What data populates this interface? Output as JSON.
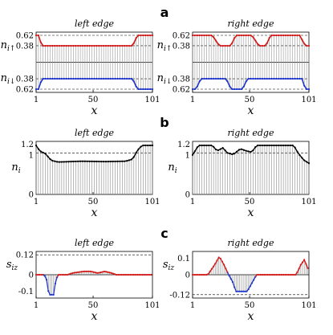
{
  "panel_labels": [
    "a",
    "b",
    "c"
  ],
  "chart_data": [
    {
      "type": "line",
      "panel": "a",
      "title": "left edge",
      "xlabel": "x",
      "ylabel_up": "n_{i↑}",
      "ylabel_dn": "n_{i↓}",
      "xticks": [
        "1",
        "50",
        "101"
      ],
      "yticks_up": [
        "0.62",
        "0.38"
      ],
      "yticks_dn": [
        "0.38",
        "0.62"
      ],
      "xlim": [
        1,
        101
      ],
      "colors": {
        "up": "#d11a1a",
        "down": "#1c33c9"
      },
      "series": [
        {
          "name": "up",
          "segments": [
            [
              1,
              0.62
            ],
            [
              3,
              0.62
            ],
            [
              6,
              0.38
            ],
            [
              84,
              0.38
            ],
            [
              88,
              0.62
            ],
            [
              101,
              0.62
            ]
          ]
        },
        {
          "name": "down",
          "segments": [
            [
              1,
              0.62
            ],
            [
              3,
              0.62
            ],
            [
              6,
              0.38
            ],
            [
              84,
              0.38
            ],
            [
              88,
              0.62
            ],
            [
              101,
              0.62
            ]
          ]
        }
      ]
    },
    {
      "type": "line",
      "panel": "a",
      "title": "right edge",
      "xlabel": "x",
      "ylabel_up": "n_{i↑}",
      "ylabel_dn": "n_{i↓}",
      "xticks": [
        "1",
        "50",
        "101"
      ],
      "yticks_up": [
        "0.62",
        "0.38"
      ],
      "yticks_dn": [
        "0.38",
        "0.62"
      ],
      "xlim": [
        1,
        101
      ],
      "colors": {
        "up": "#d11a1a",
        "down": "#1c33c9"
      },
      "series": [
        {
          "name": "up",
          "segments": [
            [
              1,
              0.62
            ],
            [
              18,
              0.62
            ],
            [
              24,
              0.38
            ],
            [
              34,
              0.38
            ],
            [
              38,
              0.62
            ],
            [
              52,
              0.62
            ],
            [
              58,
              0.38
            ],
            [
              64,
              0.38
            ],
            [
              68,
              0.62
            ],
            [
              93,
              0.62
            ],
            [
              98,
              0.38
            ],
            [
              101,
              0.38
            ]
          ]
        },
        {
          "name": "down",
          "segments": [
            [
              1,
              0.62
            ],
            [
              4,
              0.62
            ],
            [
              8,
              0.38
            ],
            [
              30,
              0.38
            ],
            [
              34,
              0.62
            ],
            [
              44,
              0.62
            ],
            [
              48,
              0.38
            ],
            [
              95,
              0.38
            ],
            [
              98,
              0.62
            ],
            [
              101,
              0.62
            ]
          ]
        }
      ]
    },
    {
      "type": "line",
      "panel": "b",
      "title": "left edge",
      "xlabel": "x",
      "ylabel": "n_i",
      "xticks": [
        "1",
        "50",
        "101"
      ],
      "yticks": [
        "1.2",
        "1",
        "0"
      ],
      "ylim": [
        0,
        1.2
      ],
      "reference_line": 1,
      "points": [
        [
          1,
          1.18
        ],
        [
          4,
          1.05
        ],
        [
          9,
          0.98
        ],
        [
          14,
          0.82
        ],
        [
          20,
          0.78
        ],
        [
          40,
          0.8
        ],
        [
          60,
          0.79
        ],
        [
          78,
          0.8
        ],
        [
          84,
          0.85
        ],
        [
          88,
          1.06
        ],
        [
          92,
          1.18
        ],
        [
          101,
          1.18
        ]
      ]
    },
    {
      "type": "line",
      "panel": "b",
      "title": "right edge",
      "xlabel": "x",
      "ylabel": "n_i",
      "xticks": [
        "1",
        "50",
        "101"
      ],
      "yticks": [
        "1.2",
        "1",
        "0"
      ],
      "ylim": [
        0,
        1.2
      ],
      "reference_line": 1,
      "points": [
        [
          1,
          0.95
        ],
        [
          6,
          1.18
        ],
        [
          18,
          1.18
        ],
        [
          22,
          1.05
        ],
        [
          27,
          1.12
        ],
        [
          31,
          1.0
        ],
        [
          36,
          0.96
        ],
        [
          42,
          1.1
        ],
        [
          47,
          1.05
        ],
        [
          52,
          1.02
        ],
        [
          56,
          1.18
        ],
        [
          88,
          1.18
        ],
        [
          92,
          0.98
        ],
        [
          97,
          0.82
        ],
        [
          101,
          0.75
        ]
      ]
    },
    {
      "type": "line",
      "panel": "c",
      "title": "left edge",
      "xlabel": "x",
      "ylabel": "s_{iz}",
      "xticks": [
        "1",
        "50",
        "101"
      ],
      "yticks": [
        "0.12",
        "0",
        "-0.1"
      ],
      "ylim": [
        -0.14,
        0.14
      ],
      "reference_line": 0.12,
      "colors": {
        "positive": "#d11a1a",
        "negative": "#1c33c9"
      },
      "points": [
        [
          1,
          0
        ],
        [
          8,
          0
        ],
        [
          10,
          -0.03
        ],
        [
          12,
          -0.12
        ],
        [
          16,
          -0.12
        ],
        [
          18,
          -0.03
        ],
        [
          20,
          0
        ],
        [
          28,
          0
        ],
        [
          32,
          0.01
        ],
        [
          42,
          0.02
        ],
        [
          48,
          0.02
        ],
        [
          54,
          0.01
        ],
        [
          60,
          0.02
        ],
        [
          66,
          0.01
        ],
        [
          70,
          0
        ],
        [
          101,
          0
        ]
      ]
    },
    {
      "type": "line",
      "panel": "c",
      "title": "right edge",
      "xlabel": "x",
      "ylabel": "s_{iz}",
      "xticks": [
        "1",
        "50",
        "101"
      ],
      "yticks": [
        "0.1",
        "0",
        "-0.12"
      ],
      "ylim": [
        -0.14,
        0.14
      ],
      "reference_line": -0.12,
      "colors": {
        "positive": "#d11a1a",
        "negative": "#1c33c9"
      },
      "points": [
        [
          1,
          0
        ],
        [
          14,
          0
        ],
        [
          20,
          0.06
        ],
        [
          24,
          0.11
        ],
        [
          28,
          0.06
        ],
        [
          32,
          0
        ],
        [
          36,
          -0.05
        ],
        [
          38,
          -0.1
        ],
        [
          48,
          -0.1
        ],
        [
          52,
          -0.05
        ],
        [
          56,
          0
        ],
        [
          90,
          0
        ],
        [
          94,
          0.06
        ],
        [
          97,
          0.09
        ],
        [
          100,
          0.04
        ],
        [
          101,
          0
        ]
      ]
    }
  ]
}
